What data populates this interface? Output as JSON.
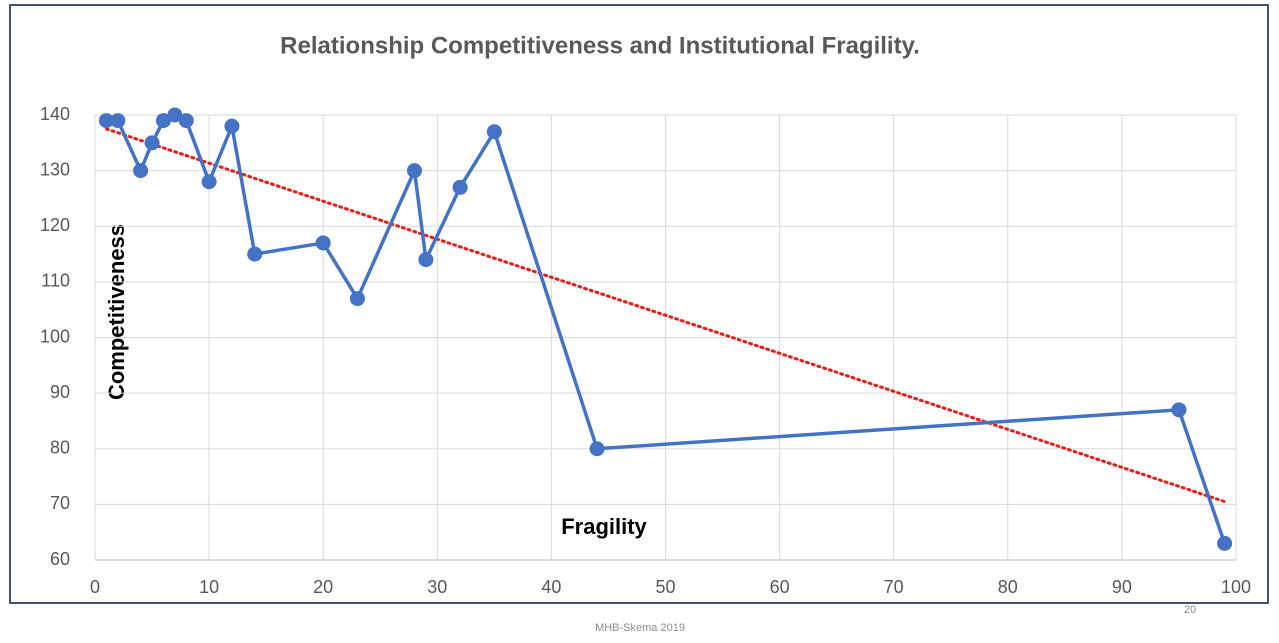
{
  "chart_data": {
    "type": "line",
    "title": "Relationship Competitiveness and Institutional Fragility.",
    "x_label": "Fragility",
    "y_label": "Competitiveness",
    "footer": "MHB-Skema 2019",
    "page_number": "20",
    "x": [
      1,
      2,
      4,
      5,
      6,
      7,
      8,
      10,
      12,
      14,
      20,
      23,
      28,
      29,
      32,
      35,
      44,
      95,
      99
    ],
    "values": [
      139,
      139,
      130,
      135,
      139,
      140,
      139,
      128,
      138,
      115,
      117,
      107,
      130,
      114,
      127,
      137,
      80,
      87,
      63
    ],
    "color": "#4472c4",
    "trendline": {
      "x": [
        1,
        99
      ],
      "values": [
        137.5,
        70.5
      ],
      "color": "#e81c1c"
    },
    "xlim": [
      0,
      100
    ],
    "xticks": [
      0,
      10,
      20,
      30,
      40,
      50,
      60,
      70,
      80,
      90,
      100
    ],
    "ylim": [
      60,
      140
    ],
    "yticks": [
      60,
      70,
      80,
      90,
      100,
      110,
      120,
      130,
      140
    ],
    "grid": true
  }
}
